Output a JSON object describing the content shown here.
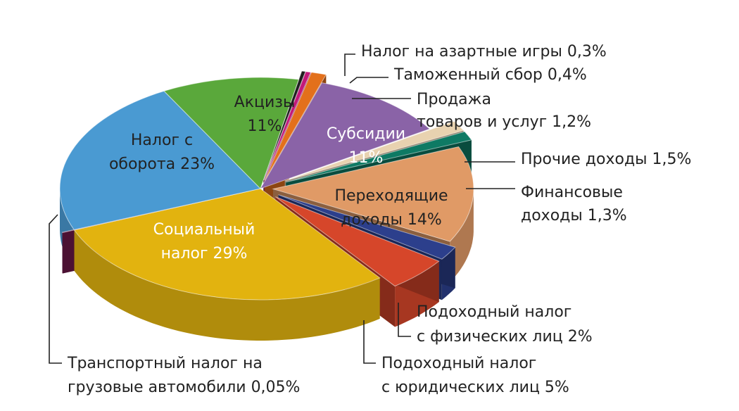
{
  "chart_data": {
    "type": "pie",
    "unit": "%",
    "slices": [
      {
        "name": "Налог на азартные игры",
        "value": 0.3,
        "label_lines": [
          "Налог на азартные игры 0,3%"
        ],
        "color": "#1f1f1f"
      },
      {
        "name": "Таможенный сбор",
        "value": 0.4,
        "label_lines": [
          "Таможенный сбор 0,4%"
        ],
        "color": "#c2187a"
      },
      {
        "name": "Продажа товаров и услуг",
        "value": 1.2,
        "label_lines": [
          "Продажа",
          "товаров и услуг 1,2%"
        ],
        "color": "#e3701b"
      },
      {
        "name": "Субсидии",
        "value": 11,
        "label_lines": [
          "Субсидии",
          "11%"
        ],
        "color": "#8a63a7"
      },
      {
        "name": "Прочие доходы",
        "value": 1.5,
        "label_lines": [
          "Прочие доходы 1,5%"
        ],
        "color": "#e8d2b0"
      },
      {
        "name": "Финансовые доходы",
        "value": 1.3,
        "label_lines": [
          "Финансовые",
          "доходы 1,3%"
        ],
        "color": "#0e7a64"
      },
      {
        "name": "Переходящие доходы",
        "value": 14,
        "label_lines": [
          "Переходящие",
          "доходы 14%"
        ],
        "color": "#e09a66"
      },
      {
        "name": "Подоходный налог с физических лиц",
        "value": 2,
        "label_lines": [
          "Подоходный налог",
          "с физических лиц 2%"
        ],
        "color": "#2c3f8c"
      },
      {
        "name": "Подоходный налог с юридических лиц",
        "value": 5,
        "label_lines": [
          "Подоходный налог",
          "с юридических лиц 5%"
        ],
        "color": "#d6462a"
      },
      {
        "name": "Социальный налог",
        "value": 29,
        "label_lines": [
          "Социальный",
          "налог 29%"
        ],
        "color": "#e2b30f"
      },
      {
        "name": "Транспортный налог на грузовые автомобили",
        "value": 0.05,
        "label_lines": [
          "Транспортный налог на",
          "грузовые автомобили 0,05%"
        ],
        "color": "#7a1c52"
      },
      {
        "name": "Налог с оборота",
        "value": 23,
        "label_lines": [
          "Налог с",
          "оборота 23%"
        ],
        "color": "#4a9ad2"
      },
      {
        "name": "Акцизы",
        "value": 11,
        "label_lines": [
          "Акцизы",
          "11%"
        ],
        "color": "#5aa83b"
      }
    ]
  }
}
